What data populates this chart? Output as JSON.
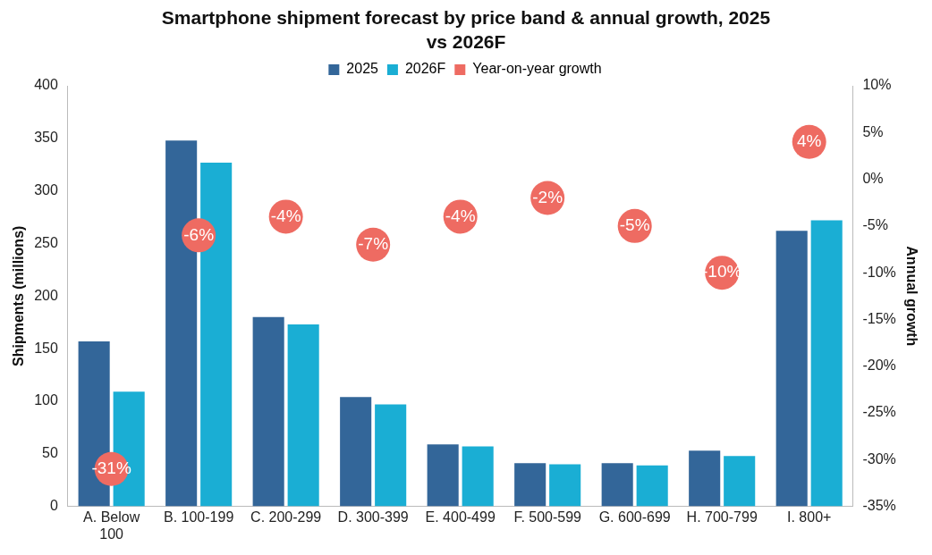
{
  "chart_data": {
    "type": "bar",
    "title": "Smartphone shipment forecast by price band & annual growth, 2025 vs 2026F",
    "ylabel": "Shipments (millions)",
    "y2label": "Annual growth",
    "categories": [
      "A. Below 100",
      "B. 100-199",
      "C. 200-299",
      "D. 300-399",
      "E. 400-499",
      "F. 500-599",
      "G. 600-699",
      "H. 700-799",
      "I. 800+"
    ],
    "series": [
      {
        "name": "2025",
        "color": "#336699",
        "values": [
          157,
          348,
          180,
          104,
          59,
          41,
          41,
          53,
          262
        ]
      },
      {
        "name": "2026F",
        "color": "#1aaed4",
        "values": [
          109,
          327,
          173,
          97,
          57,
          40,
          39,
          48,
          272
        ]
      },
      {
        "name": "Year-on-year growth",
        "type": "scatter",
        "axis": "y2",
        "marker": "circle",
        "color": "#ee6b62",
        "x": [
          "A. Below 100",
          "B. 100-199",
          "C. 200-299",
          "D. 300-399",
          "E. 400-499",
          "F. 500-599",
          "G. 600-699",
          "H. 700-799",
          "I. 800+"
        ],
        "values": [
          -31,
          -6,
          -4,
          -7,
          -4,
          -2,
          -5,
          -10,
          4
        ],
        "value_labels": [
          "-31%",
          "-6%",
          "-4%",
          "-7%",
          "-4%",
          "-2%",
          "-5%",
          "-10%",
          "4%"
        ]
      }
    ],
    "ylim": [
      0,
      400
    ],
    "yticks": [
      0,
      50,
      100,
      150,
      200,
      250,
      300,
      350,
      400
    ],
    "y2lim": [
      -35,
      10
    ],
    "y2ticks": [
      {
        "value": -35,
        "label": "-35%"
      },
      {
        "value": -30,
        "label": "-30%"
      },
      {
        "value": -25,
        "label": "-25%"
      },
      {
        "value": -20,
        "label": "-20%"
      },
      {
        "value": -15,
        "label": "-15%"
      },
      {
        "value": -10,
        "label": "-10%"
      },
      {
        "value": -5,
        "label": "-5%"
      },
      {
        "value": 0,
        "label": "0%"
      },
      {
        "value": 5,
        "label": "5%"
      },
      {
        "value": 10,
        "label": "10%"
      }
    ],
    "grid": false,
    "legend": "top"
  }
}
